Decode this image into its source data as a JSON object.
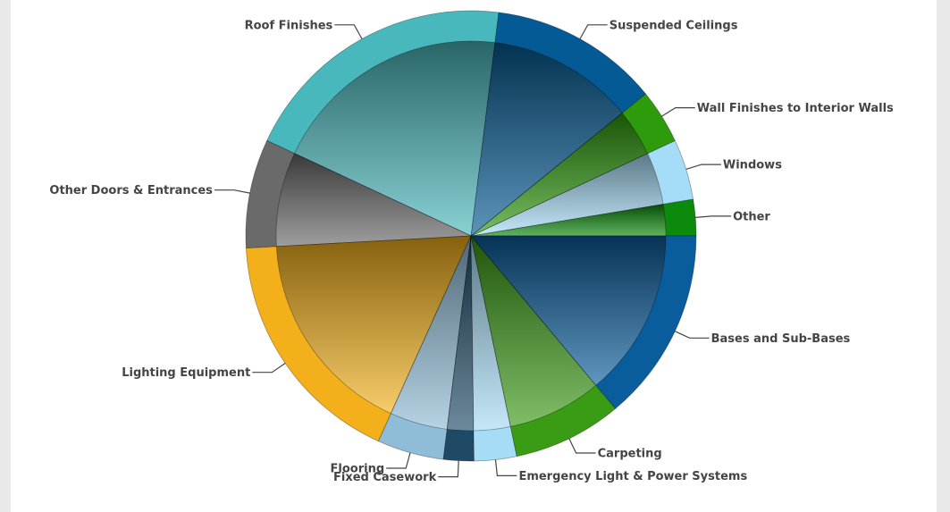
{
  "chart_data": {
    "type": "pie",
    "title": "",
    "start_angle_deg": 0,
    "direction": "counterclockwise",
    "slices": [
      {
        "label": "Other",
        "value": 3.0,
        "color": "#0b8a0b",
        "label_side": "right"
      },
      {
        "label": "Windows",
        "value": 5.0,
        "color": "#a5dcf7",
        "label_side": "right"
      },
      {
        "label": "Wall Finishes to Interior Walls",
        "value": 4.5,
        "color": "#2e9b0d",
        "label_side": "right"
      },
      {
        "label": "Suspended Ceilings",
        "value": 14.0,
        "color": "#045a94",
        "label_side": "right"
      },
      {
        "label": "Roof Finishes",
        "value": 23.0,
        "color": "#49b8bd",
        "label_side": "left"
      },
      {
        "label": "Other Doors & Entrances",
        "value": 9.0,
        "color": "#6a6a6a",
        "label_side": "left"
      },
      {
        "label": "Lighting Equipment",
        "value": 20.0,
        "color": "#f3b01a",
        "label_side": "left"
      },
      {
        "label": "Flooring",
        "value": 5.5,
        "color": "#8fbcd6",
        "label_side": "left"
      },
      {
        "label": "Fixed Casework",
        "value": 2.5,
        "color": "#1e4a66",
        "label_side": "left"
      },
      {
        "label": "Emergency Light & Power Systems",
        "value": 3.5,
        "color": "#a6dcf6",
        "label_side": "right"
      },
      {
        "label": "Carpeting",
        "value": 9.0,
        "color": "#3a9b15",
        "label_side": "right"
      },
      {
        "label": "Bases and Sub-Bases",
        "value": 16.0,
        "color": "#0a5d9c",
        "label_side": "right"
      }
    ]
  }
}
